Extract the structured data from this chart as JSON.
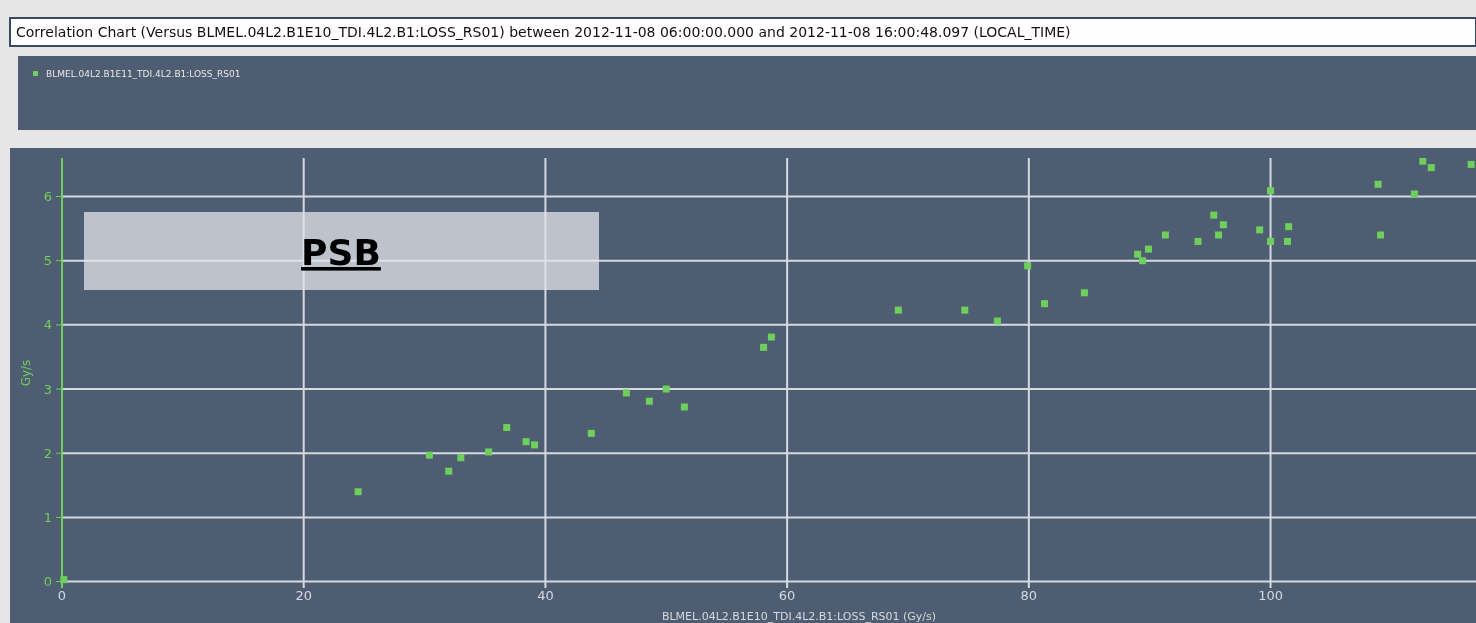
{
  "chart_data": {
    "type": "scatter",
    "title": "Correlation Chart (Versus BLMEL.04L2.B1E10_TDI.4L2.B1:LOSS_RS01) between 2012-11-08 06:00:00.000 and 2012-11-08 16:00:48.097 (LOCAL_TIME)",
    "xlabel": "BLMEL.04L2.B1E10_TDI.4L2.B1:LOSS_RS01 (Gy/s)",
    "ylabel": "Gy/s",
    "annotations": [
      "PSB"
    ],
    "legend": "top",
    "grid": true,
    "marker": "square",
    "xlim": [
      0,
      117
    ],
    "xticks": [
      0,
      20,
      40,
      60,
      80,
      100
    ],
    "ylim": [
      -0.1,
      6.6
    ],
    "yticks": [
      0,
      1,
      2,
      3,
      4,
      5,
      6
    ],
    "series": [
      {
        "name": "BLMEL.04L2.B1E11_TDI.4L2.B1:LOSS_RS01",
        "color": "#6fcf5c",
        "x": [
          0.15,
          24.5,
          30.4,
          32.0,
          33.0,
          35.3,
          36.8,
          38.4,
          39.1,
          43.8,
          46.7,
          48.6,
          50.0,
          51.5,
          58.05,
          58.7,
          69.2,
          74.7,
          77.4,
          79.9,
          81.3,
          84.6,
          89.0,
          89.4,
          89.9,
          91.3,
          94.0,
          95.3,
          95.7,
          96.1,
          99.1,
          100.0,
          100.0,
          101.4,
          101.5,
          108.9,
          109.1,
          111.9,
          112.6,
          113.3,
          116.6
        ],
        "values": [
          0.03,
          1.4,
          1.97,
          1.72,
          1.93,
          2.02,
          2.4,
          2.18,
          2.13,
          2.31,
          2.94,
          2.81,
          3.0,
          2.72,
          3.65,
          3.81,
          4.23,
          4.23,
          4.06,
          4.92,
          4.33,
          4.5,
          5.1,
          5.0,
          5.18,
          5.4,
          5.3,
          5.71,
          5.4,
          5.56,
          5.48,
          6.09,
          5.3,
          5.3,
          5.53,
          6.19,
          5.4,
          6.04,
          6.55,
          6.45,
          6.5
        ]
      }
    ]
  }
}
